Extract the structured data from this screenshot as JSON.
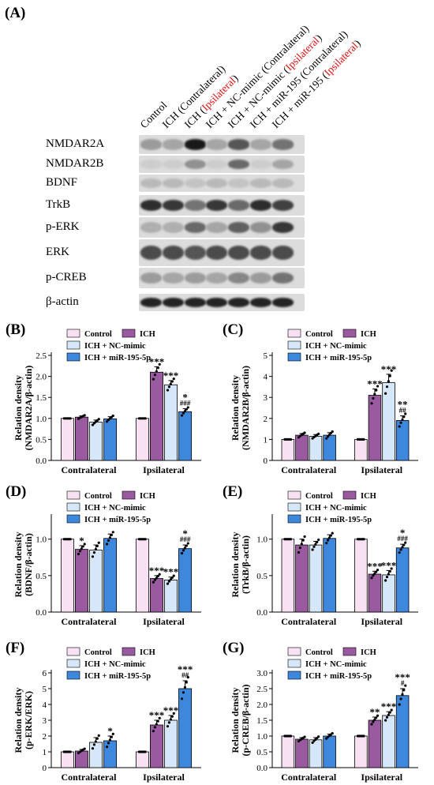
{
  "figure": {
    "panel_a_label": "(A)",
    "lanes": [
      {
        "pre": "Control",
        "red": "",
        "post": ""
      },
      {
        "pre": "ICH (Contralateral)",
        "red": "",
        "post": ""
      },
      {
        "pre": "ICH (",
        "red": "Ipsilateral",
        "post": ")"
      },
      {
        "pre": "ICH + NC-mimic (Contralateral)",
        "red": "",
        "post": ""
      },
      {
        "pre": "ICH + NC-mimic (",
        "red": "Ipsilateral",
        "post": ")"
      },
      {
        "pre": "ICH + miR-195 (Contralateral)",
        "red": "",
        "post": ""
      },
      {
        "pre": "ICH + miR-195 (",
        "red": "Ipsilateral",
        "post": ")"
      }
    ],
    "blot_rows": [
      {
        "label": "NMDAR2A",
        "intensity": [
          0.35,
          0.3,
          1.0,
          0.3,
          0.7,
          0.3,
          0.55
        ]
      },
      {
        "label": "NMDAR2B",
        "intensity": [
          0.1,
          0.1,
          0.4,
          0.1,
          0.6,
          0.1,
          0.3
        ]
      },
      {
        "label": "BDNF",
        "intensity": [
          0.2,
          0.2,
          0.15,
          0.2,
          0.15,
          0.2,
          0.2
        ]
      },
      {
        "label": "TrkB",
        "intensity": [
          0.9,
          0.85,
          0.55,
          0.85,
          0.6,
          0.9,
          0.8
        ]
      },
      {
        "label": "p-ERK",
        "intensity": [
          0.25,
          0.25,
          0.6,
          0.3,
          0.65,
          0.4,
          0.85
        ]
      },
      {
        "label": "ERK",
        "intensity": [
          0.75,
          0.75,
          0.7,
          0.75,
          0.75,
          0.75,
          0.75
        ]
      },
      {
        "label": "p-CREB",
        "intensity": [
          0.35,
          0.3,
          0.35,
          0.3,
          0.45,
          0.35,
          0.55
        ]
      },
      {
        "label": "β-actin",
        "intensity": [
          0.95,
          0.95,
          0.95,
          0.95,
          0.95,
          0.95,
          0.95
        ]
      }
    ]
  },
  "colors": {
    "Control": "#f7e1f2",
    "ICH": "#9a5aa0",
    "ICH + NC-mimic": "#d5e7f8",
    "ICH + miR-195-5p": "#3d88dd"
  },
  "chart_data": [
    {
      "panel": "(B)",
      "type": "bar",
      "categories": [
        "Contralateral",
        "Ipsilateral"
      ],
      "ylabel": [
        "Relation density",
        "(NMDAR2A/β-actin)"
      ],
      "ylim": [
        0,
        2.5
      ],
      "yticks": [
        0,
        0.5,
        1.0,
        1.5,
        2.0,
        2.5
      ],
      "decimals": 1,
      "series": [
        {
          "name": "Control",
          "values": [
            1.0,
            1.0
          ],
          "err": [
            0,
            0
          ]
        },
        {
          "name": "ICH",
          "values": [
            1.03,
            2.1
          ],
          "err": [
            0.03,
            0.13
          ]
        },
        {
          "name": "ICH + NC-mimic",
          "values": [
            0.91,
            1.8
          ],
          "err": [
            0.05,
            0.1
          ]
        },
        {
          "name": "ICH + miR-195-5p",
          "values": [
            0.99,
            1.16
          ],
          "err": [
            0.05,
            0.07
          ]
        }
      ],
      "annotations": [
        [
          [
            "",
            ""
          ],
          [
            "",
            ""
          ],
          [
            "",
            ""
          ],
          [
            "",
            ""
          ]
        ],
        [
          [
            "",
            ""
          ],
          [
            "***",
            ""
          ],
          [
            "***",
            ""
          ],
          [
            "*",
            "###"
          ]
        ]
      ]
    },
    {
      "panel": "(C)",
      "type": "bar",
      "categories": [
        "Contralateral",
        "Ipsilateral"
      ],
      "ylabel": [
        "Relation density",
        "(NMDAR2B/β-actin)"
      ],
      "ylim": [
        0,
        5
      ],
      "yticks": [
        0,
        1,
        2,
        3,
        4,
        5
      ],
      "decimals": 0,
      "series": [
        {
          "name": "Control",
          "values": [
            1.0,
            1.0
          ],
          "err": [
            0,
            0
          ]
        },
        {
          "name": "ICH",
          "values": [
            1.2,
            3.1
          ],
          "err": [
            0.08,
            0.3
          ]
        },
        {
          "name": "ICH + NC-mimic",
          "values": [
            1.15,
            3.7
          ],
          "err": [
            0.08,
            0.4
          ]
        },
        {
          "name": "ICH + miR-195-5p",
          "values": [
            1.2,
            1.9
          ],
          "err": [
            0.12,
            0.22
          ]
        }
      ],
      "annotations": [
        [
          [
            "",
            ""
          ],
          [
            "",
            ""
          ],
          [
            "",
            ""
          ],
          [
            "",
            ""
          ]
        ],
        [
          [
            "",
            ""
          ],
          [
            "***",
            ""
          ],
          [
            "***",
            ""
          ],
          [
            "**",
            "##"
          ]
        ]
      ]
    },
    {
      "panel": "(D)",
      "type": "bar",
      "categories": [
        "Contralateral",
        "Ipsilateral"
      ],
      "ylabel": [
        "Relation density",
        "(BDNF/β-actin)"
      ],
      "ylim": [
        0,
        1.3
      ],
      "yticks": [
        0,
        0.5,
        1.0
      ],
      "decimals": 1,
      "series": [
        {
          "name": "Control",
          "values": [
            1.0,
            1.0
          ],
          "err": [
            0,
            0
          ]
        },
        {
          "name": "ICH",
          "values": [
            0.86,
            0.46
          ],
          "err": [
            0.05,
            0.04
          ]
        },
        {
          "name": "ICH + NC-mimic",
          "values": [
            0.85,
            0.44
          ],
          "err": [
            0.07,
            0.04
          ]
        },
        {
          "name": "ICH + miR-195-5p",
          "values": [
            1.01,
            0.87
          ],
          "err": [
            0.06,
            0.05
          ]
        }
      ],
      "annotations": [
        [
          [
            "",
            ""
          ],
          [
            "*",
            ""
          ],
          [
            "",
            ""
          ],
          [
            "",
            ""
          ]
        ],
        [
          [
            "",
            ""
          ],
          [
            "***",
            ""
          ],
          [
            "***",
            ""
          ],
          [
            "*",
            "###"
          ]
        ]
      ]
    },
    {
      "panel": "(E)",
      "type": "bar",
      "categories": [
        "Contralateral",
        "Ipsilateral"
      ],
      "ylabel": [
        "Relation density",
        "(TrkB/β-actin)"
      ],
      "ylim": [
        0,
        1.3
      ],
      "yticks": [
        0,
        0.5,
        1.0
      ],
      "decimals": 1,
      "series": [
        {
          "name": "Control",
          "values": [
            1.0,
            1.0
          ],
          "err": [
            0,
            0
          ]
        },
        {
          "name": "ICH",
          "values": [
            0.92,
            0.52
          ],
          "err": [
            0.08,
            0.04
          ]
        },
        {
          "name": "ICH + NC-mimic",
          "values": [
            0.92,
            0.51
          ],
          "err": [
            0.05,
            0.06
          ]
        },
        {
          "name": "ICH + miR-195-5p",
          "values": [
            1.01,
            0.88
          ],
          "err": [
            0.05,
            0.05
          ]
        }
      ],
      "annotations": [
        [
          [
            "",
            ""
          ],
          [
            "",
            ""
          ],
          [
            "",
            ""
          ],
          [
            "",
            ""
          ]
        ],
        [
          [
            "",
            ""
          ],
          [
            "***",
            ""
          ],
          [
            "***",
            ""
          ],
          [
            "*",
            "###"
          ]
        ]
      ]
    },
    {
      "panel": "(F)",
      "type": "bar",
      "categories": [
        "Contralateral",
        "Ipsilateral"
      ],
      "ylabel": [
        "Relation density",
        "(p-ERK/ERK)"
      ],
      "ylim": [
        0,
        6
      ],
      "yticks": [
        0,
        1,
        2,
        3,
        4,
        5,
        6
      ],
      "decimals": 0,
      "series": [
        {
          "name": "Control",
          "values": [
            1.0,
            1.0
          ],
          "err": [
            0,
            0
          ]
        },
        {
          "name": "ICH",
          "values": [
            1.05,
            2.7
          ],
          "err": [
            0.1,
            0.3
          ]
        },
        {
          "name": "ICH + NC-mimic",
          "values": [
            1.6,
            3.0
          ],
          "err": [
            0.3,
            0.3
          ]
        },
        {
          "name": "ICH + miR-195-5p",
          "values": [
            1.7,
            5.0
          ],
          "err": [
            0.3,
            0.5
          ]
        }
      ],
      "annotations": [
        [
          [
            "",
            ""
          ],
          [
            "",
            ""
          ],
          [
            "",
            ""
          ],
          [
            "*",
            ""
          ]
        ],
        [
          [
            "",
            ""
          ],
          [
            "***",
            ""
          ],
          [
            "***",
            ""
          ],
          [
            "***",
            "##"
          ]
        ]
      ]
    },
    {
      "panel": "(G)",
      "type": "bar",
      "categories": [
        "Contralateral",
        "Ipsilateral"
      ],
      "ylabel": [
        "Relation density",
        "(p-CREB/β-actin)"
      ],
      "ylim": [
        0,
        3.0
      ],
      "yticks": [
        0,
        0.5,
        1.0,
        1.5,
        2.0,
        2.5,
        3.0
      ],
      "decimals": 1,
      "series": [
        {
          "name": "Control",
          "values": [
            1.0,
            1.0
          ],
          "err": [
            0,
            0
          ]
        },
        {
          "name": "ICH",
          "values": [
            0.9,
            1.5
          ],
          "err": [
            0.05,
            0.1
          ]
        },
        {
          "name": "ICH + NC-mimic",
          "values": [
            0.88,
            1.65
          ],
          "err": [
            0.07,
            0.12
          ]
        },
        {
          "name": "ICH + miR-195-5p",
          "values": [
            1.0,
            2.28
          ],
          "err": [
            0.06,
            0.22
          ]
        }
      ],
      "annotations": [
        [
          [
            "",
            ""
          ],
          [
            "",
            ""
          ],
          [
            "",
            ""
          ],
          [
            "",
            ""
          ]
        ],
        [
          [
            "",
            ""
          ],
          [
            "**",
            ""
          ],
          [
            "***",
            ""
          ],
          [
            "***",
            "#"
          ]
        ]
      ]
    }
  ]
}
